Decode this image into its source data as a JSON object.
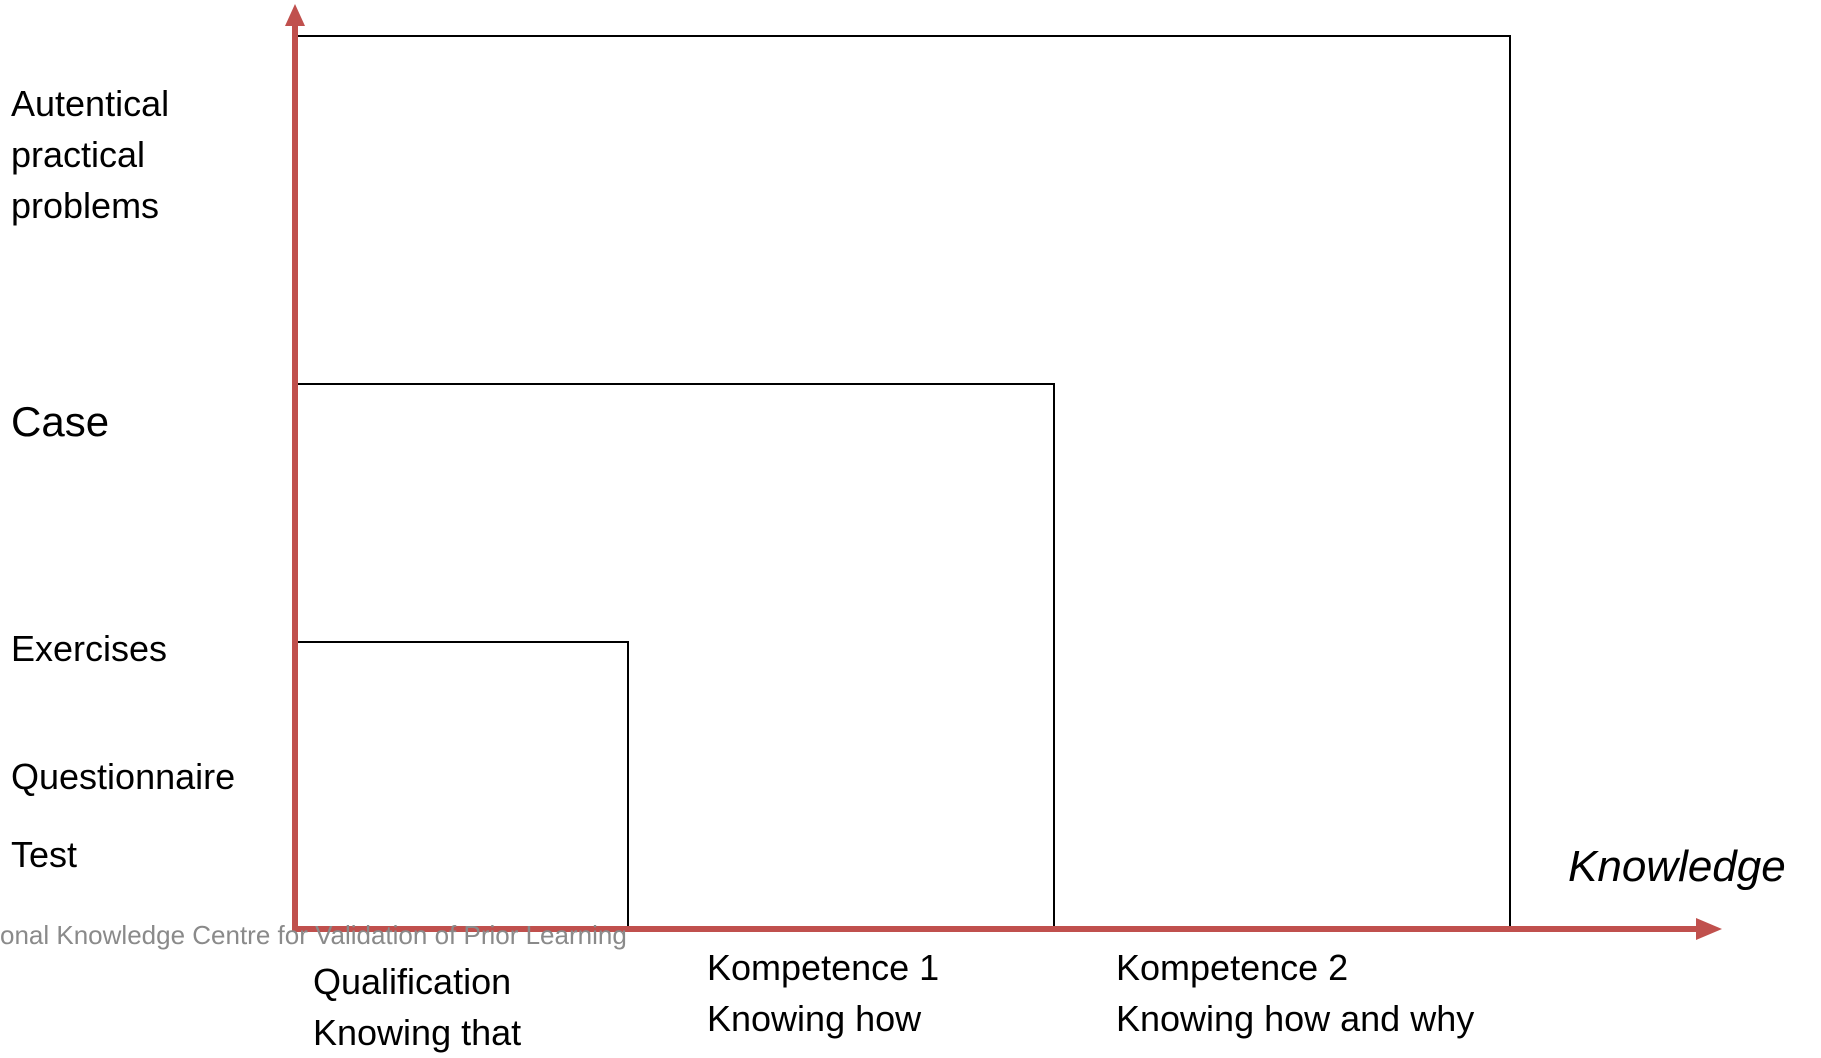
{
  "y_labels": {
    "authentic": [
      "Autentical",
      "practical",
      "problems"
    ],
    "case": "Case",
    "exercises": "Exercises",
    "questionnaire": "Questionnaire",
    "test": "Test"
  },
  "x_axis_label": "Knowledge",
  "columns": [
    {
      "lines": [
        "Qualification",
        "Knowing that"
      ]
    },
    {
      "lines": [
        "Kompetence 1",
        "Knowing how"
      ]
    },
    {
      "lines": [
        "Kompetence 2",
        "Knowing how and why"
      ]
    }
  ],
  "footer": "onal Knowledge Centre for Validation of Prior Learning",
  "colors": {
    "axis": "#c0504d",
    "box": "#000000",
    "footer": "#8a8a8a"
  }
}
